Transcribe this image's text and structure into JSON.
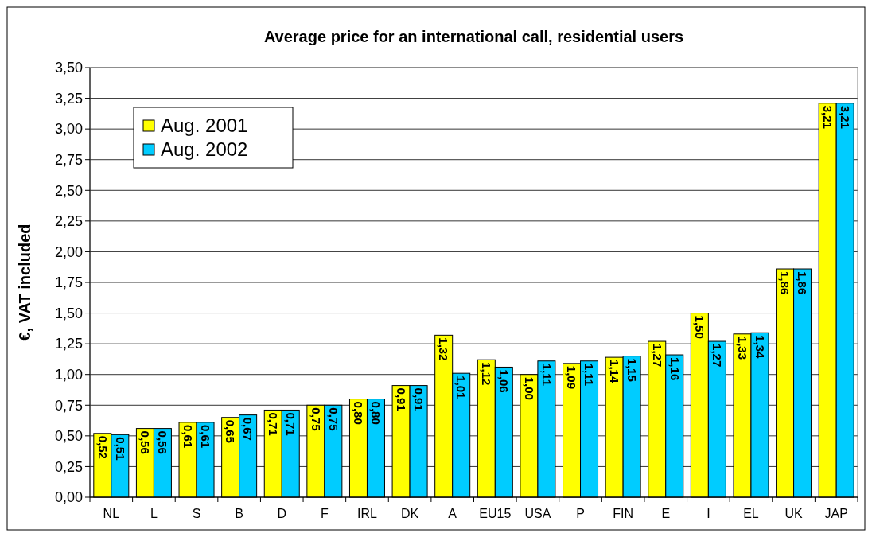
{
  "chart_data": {
    "type": "bar",
    "title": "Average price for an international call, residential users",
    "ylabel": "€, VAT included",
    "categories": [
      "NL",
      "L",
      "S",
      "B",
      "D",
      "F",
      "IRL",
      "DK",
      "A",
      "EU15",
      "USA",
      "P",
      "FIN",
      "E",
      "I",
      "EL",
      "UK",
      "JAP"
    ],
    "series": [
      {
        "name": "Aug. 2001",
        "color": "#ffff00",
        "values": [
          0.52,
          0.56,
          0.61,
          0.65,
          0.71,
          0.75,
          0.8,
          0.91,
          1.32,
          1.12,
          1.0,
          1.09,
          1.14,
          1.27,
          1.5,
          1.33,
          1.86,
          3.21
        ],
        "value_labels": [
          "0,52",
          "0,56",
          "0,61",
          "0,65",
          "0,71",
          "0,75",
          "0,80",
          "0,91",
          "1,32",
          "1,12",
          "1,00",
          "1,09",
          "1,14",
          "1,27",
          "1,50",
          "1,33",
          "1,86",
          "3,21"
        ]
      },
      {
        "name": "Aug. 2002",
        "color": "#00ccff",
        "values": [
          0.51,
          0.56,
          0.61,
          0.67,
          0.71,
          0.75,
          0.8,
          0.91,
          1.01,
          1.06,
          1.11,
          1.11,
          1.15,
          1.16,
          1.27,
          1.34,
          1.86,
          3.21
        ],
        "value_labels": [
          "0,51",
          "0,56",
          "0,61",
          "0,67",
          "0,71",
          "0,75",
          "0,80",
          "0,91",
          "1,01",
          "1,06",
          "1,11",
          "1,11",
          "1,15",
          "1,16",
          "1,27",
          "1,34",
          "1,86",
          "3,21"
        ]
      }
    ],
    "ylim": [
      0,
      3.5
    ],
    "yticks": [
      {
        "value": 0,
        "label": "0,00"
      },
      {
        "value": 0.25,
        "label": "0,25"
      },
      {
        "value": 0.5,
        "label": "0,50"
      },
      {
        "value": 0.75,
        "label": "0,75"
      },
      {
        "value": 1,
        "label": "1,00"
      },
      {
        "value": 1.25,
        "label": "1,25"
      },
      {
        "value": 1.5,
        "label": "1,50"
      },
      {
        "value": 1.75,
        "label": "1,75"
      },
      {
        "value": 2,
        "label": "2,00"
      },
      {
        "value": 2.25,
        "label": "2,25"
      },
      {
        "value": 2.5,
        "label": "2,50"
      },
      {
        "value": 2.75,
        "label": "2,75"
      },
      {
        "value": 3,
        "label": "3,00"
      },
      {
        "value": 3.25,
        "label": "3,25"
      },
      {
        "value": 3.5,
        "label": "3,50"
      }
    ],
    "grid": "y",
    "legend": "top left"
  }
}
